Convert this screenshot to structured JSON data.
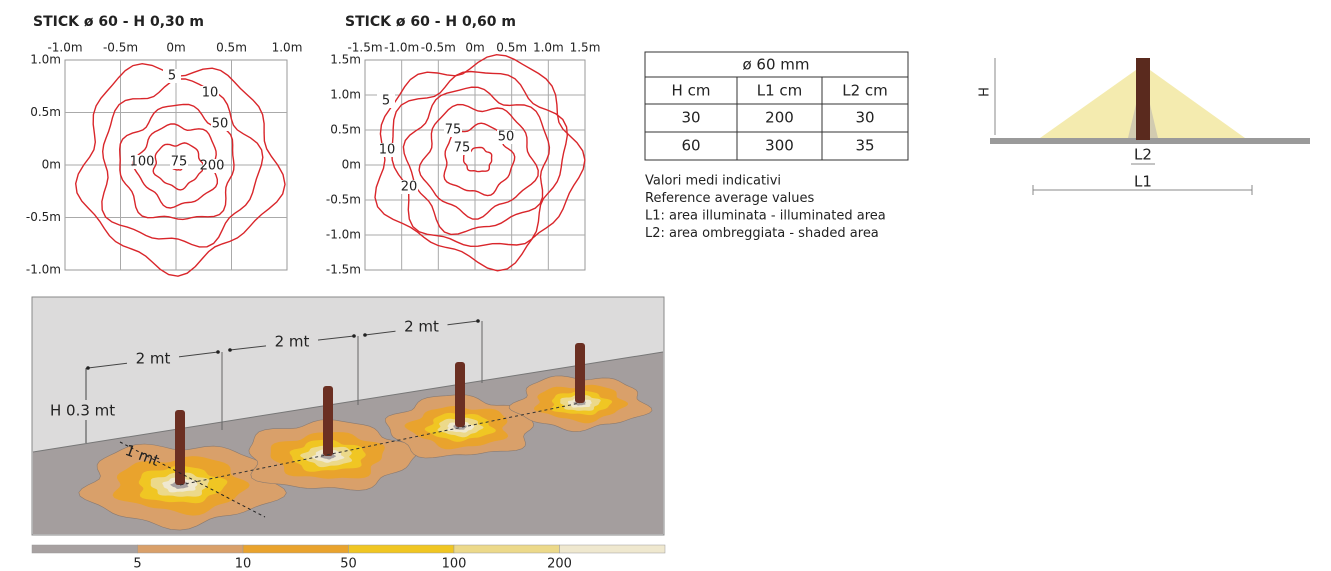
{
  "isolux": [
    {
      "title": "STICK ø 60 -  H 0,30 m",
      "x_labels": [
        "-1.0m",
        "-0.5m",
        "0m",
        "0.5m",
        "1.0m"
      ],
      "y_labels": [
        "1.0m",
        "0.5m",
        "0m",
        "-0.5m",
        "-1.0m"
      ],
      "contour_labels": [
        "5",
        "10",
        "50",
        "100",
        "75",
        "200"
      ]
    },
    {
      "title": "STICK ø 60 -  H 0,60 m",
      "x_labels": [
        "-1.5m",
        "-1.0m",
        "-0.5m",
        "0m",
        "0.5m",
        "1.0m",
        "1.5m"
      ],
      "y_labels": [
        "1.5m",
        "1.0m",
        "0.5m",
        "0m",
        "-0.5m",
        "-1.0m",
        "-1.5m"
      ],
      "contour_labels": [
        "5",
        "10",
        "20",
        "75",
        "75",
        "50"
      ]
    }
  ],
  "table": {
    "header": "ø 60 mm",
    "columns": [
      "H cm",
      "L1 cm",
      "L2 cm"
    ],
    "rows": [
      [
        "30",
        "200",
        "30"
      ],
      [
        "60",
        "300",
        "35"
      ]
    ]
  },
  "notes": [
    "Valori medi indicativi",
    "Reference average values",
    "L1: area illuminata - illuminated area",
    "L2: area ombreggiata - shaded area"
  ],
  "side_diagram": {
    "h_label": "H",
    "l2_label": "L2",
    "l1_label": "L1"
  },
  "illustration": {
    "spacing_labels": [
      "2 mt",
      "2 mt",
      "2 mt"
    ],
    "height_label": "H 0.3 mt",
    "distance_label": "1 mt"
  },
  "scale": {
    "colors": [
      "#a7a1a1",
      "#d9a06a",
      "#e9a32d",
      "#f0c623",
      "#ecd98a",
      "#efe8cf"
    ],
    "labels": [
      "5",
      "10",
      "50",
      "100",
      "200"
    ]
  }
}
